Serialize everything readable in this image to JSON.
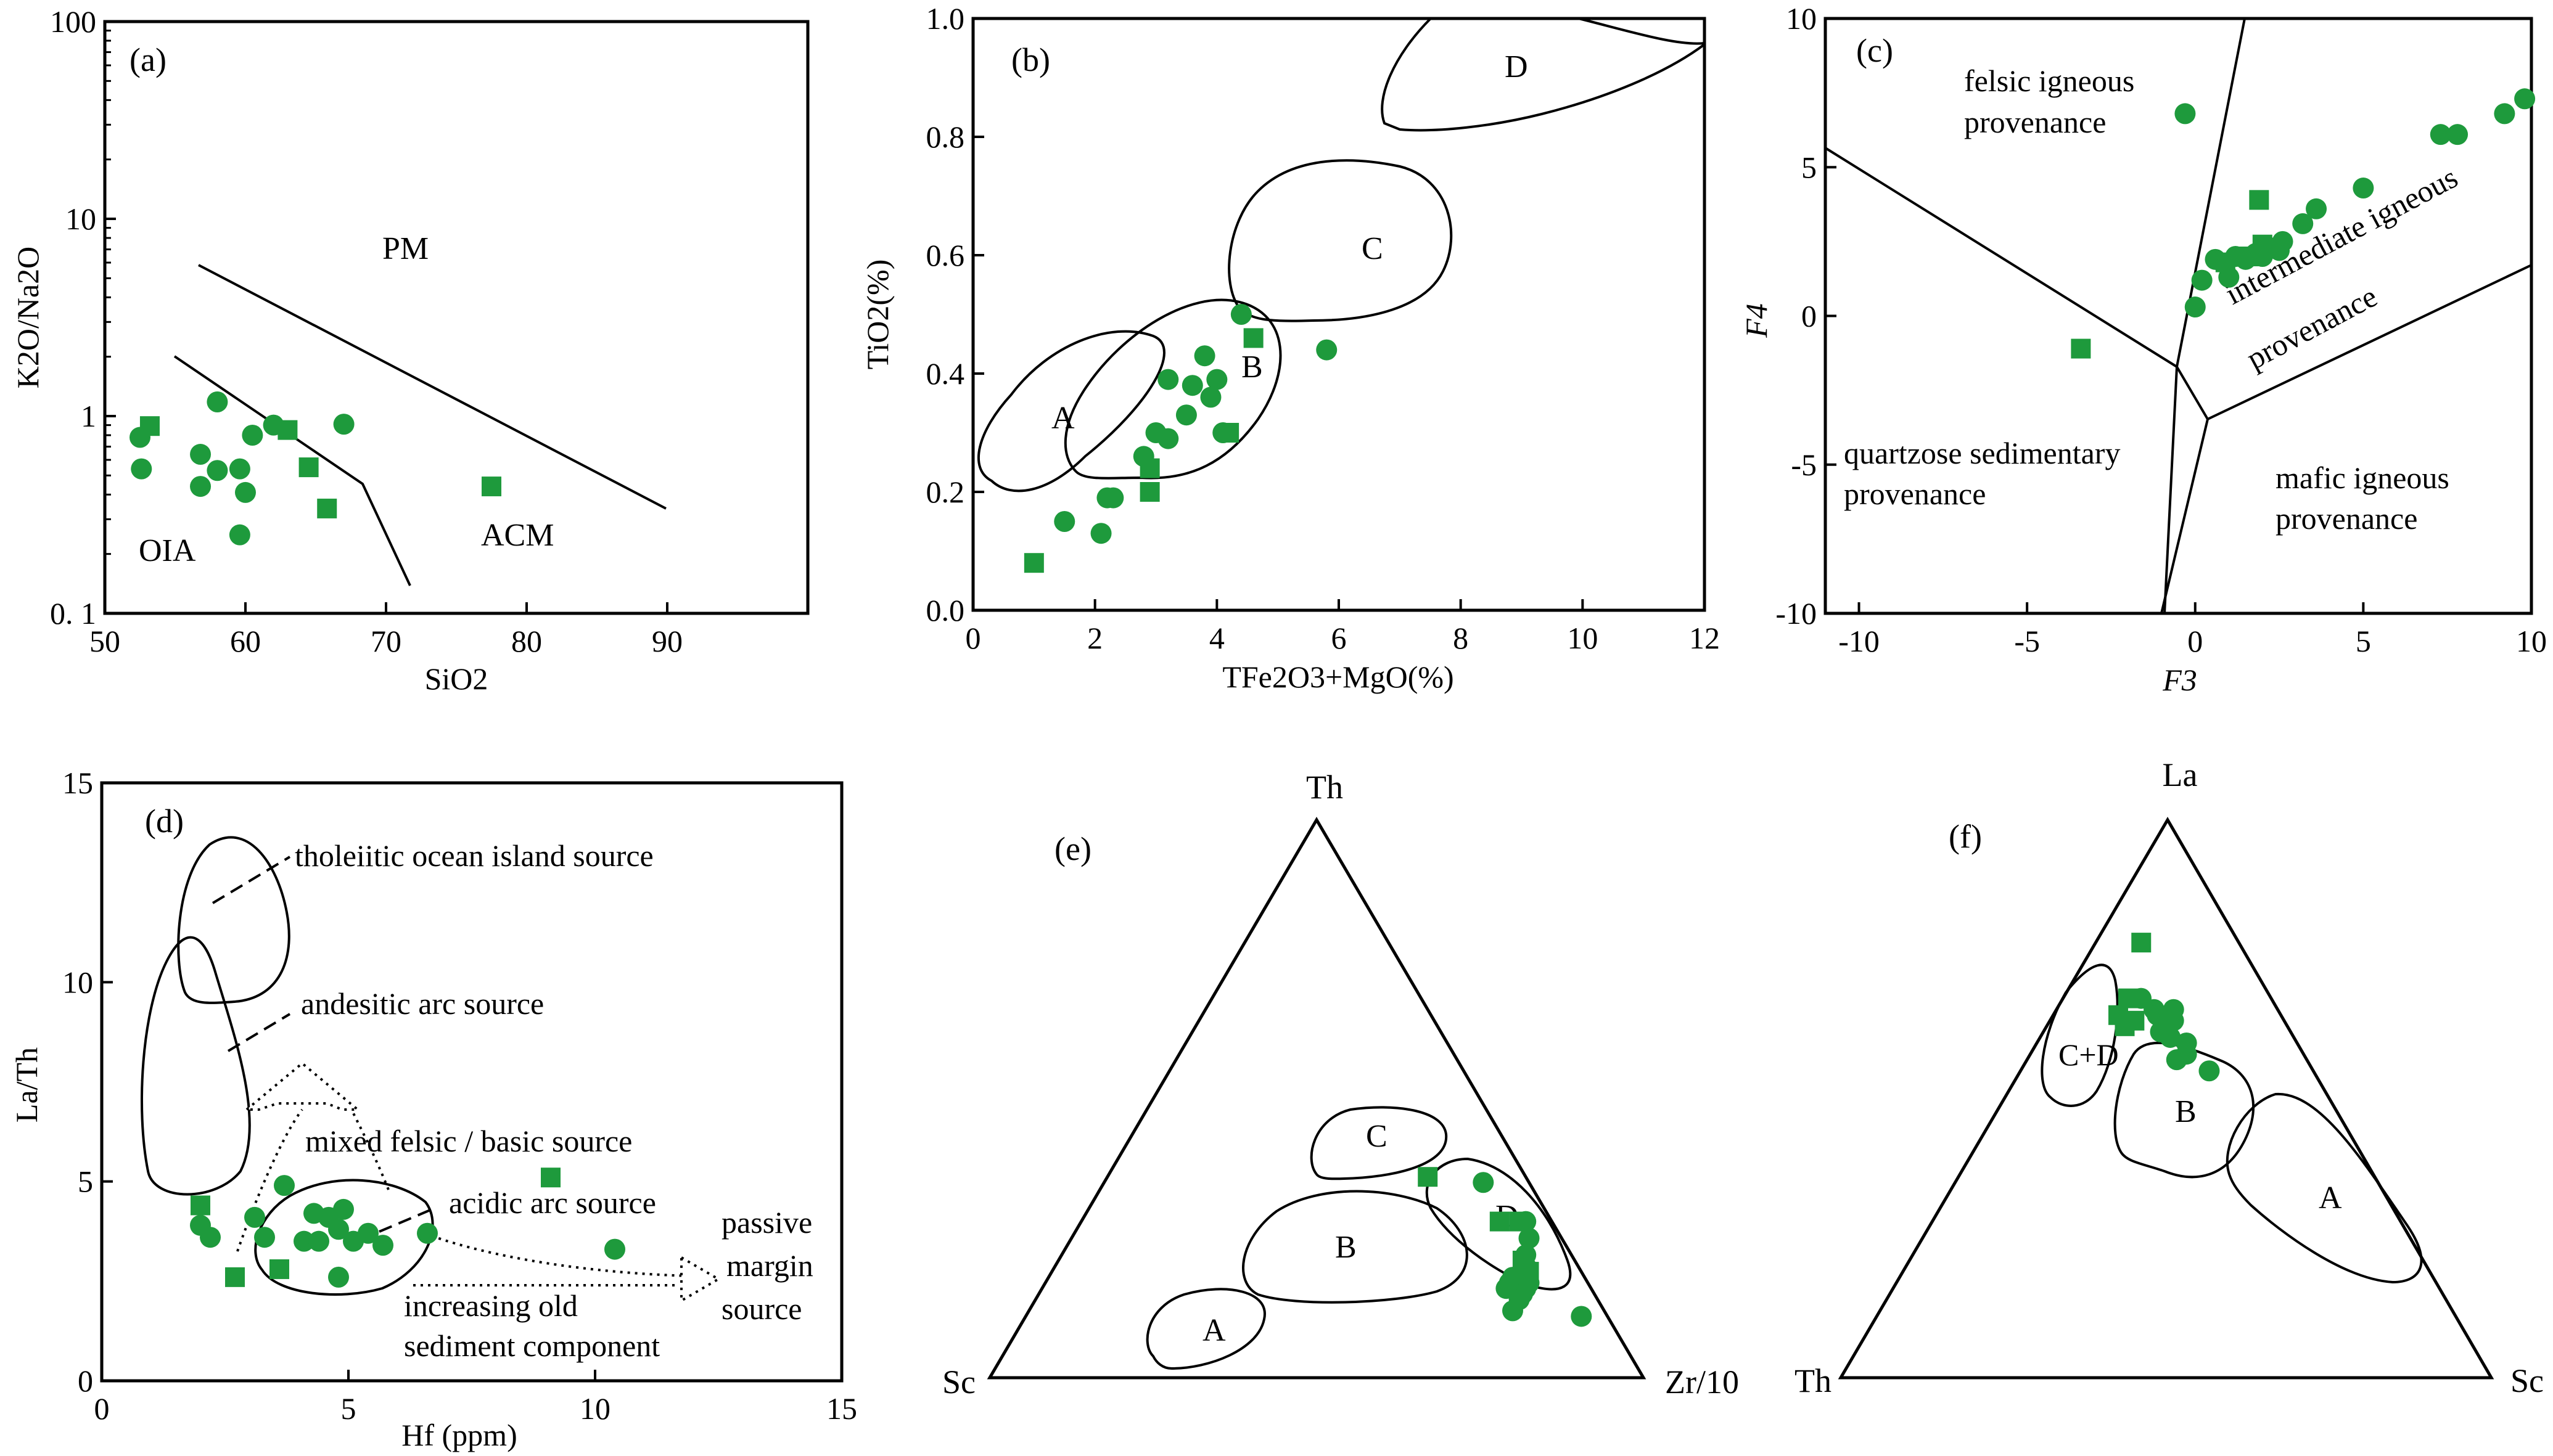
{
  "colors": {
    "marker": "#1e9a3c",
    "line": "#000000"
  },
  "chart_data": [
    {
      "id": "a",
      "type": "scatter",
      "panel_label": "(a)",
      "xlabel": "SiO2",
      "ylabel": "K2O/Na2O",
      "xlim": [
        50,
        100
      ],
      "ylim": [
        0.1,
        100
      ],
      "yscale": "log",
      "xticks": [
        "50",
        "60",
        "70",
        "80",
        "90"
      ],
      "yticks": [
        "0. 1",
        "1",
        "10",
        "100"
      ],
      "fields": [
        "PM",
        "ACM",
        "OIA"
      ],
      "series": [
        {
          "name": "circles",
          "marker": "circle",
          "points": [
            [
              52.5,
              0.78
            ],
            [
              52.6,
              0.54
            ],
            [
              56.8,
              0.64
            ],
            [
              56.8,
              0.44
            ],
            [
              58,
              1.18
            ],
            [
              58,
              0.53
            ],
            [
              59.6,
              0.54
            ],
            [
              59.6,
              0.25
            ],
            [
              60,
              0.41
            ],
            [
              60.5,
              0.8
            ],
            [
              62,
              0.9
            ],
            [
              67,
              0.91
            ]
          ]
        },
        {
          "name": "squares",
          "marker": "square",
          "points": [
            [
              53.2,
              0.89
            ],
            [
              63,
              0.85
            ],
            [
              64.5,
              0.55
            ],
            [
              65.8,
              0.34
            ],
            [
              77.5,
              0.44
            ]
          ]
        }
      ]
    },
    {
      "id": "b",
      "type": "scatter",
      "panel_label": "(b)",
      "xlabel": "TFe2O3+MgO(%)",
      "ylabel": "TiO2(%)",
      "xlim": [
        0,
        12
      ],
      "ylim": [
        0,
        1.0
      ],
      "xticks": [
        "0",
        "2",
        "4",
        "6",
        "8",
        "10",
        "12"
      ],
      "yticks": [
        "0.0",
        "0.2",
        "0.4",
        "0.6",
        "0.8",
        "1.0"
      ],
      "fields": [
        "A",
        "B",
        "C",
        "D"
      ],
      "series": [
        {
          "name": "circles",
          "marker": "circle",
          "points": [
            [
              1.5,
              0.15
            ],
            [
              2.1,
              0.13
            ],
            [
              2.2,
              0.19
            ],
            [
              2.3,
              0.19
            ],
            [
              2.8,
              0.26
            ],
            [
              3.0,
              0.3
            ],
            [
              3.2,
              0.29
            ],
            [
              3.2,
              0.39
            ],
            [
              3.5,
              0.33
            ],
            [
              3.6,
              0.38
            ],
            [
              3.8,
              0.43
            ],
            [
              3.9,
              0.36
            ],
            [
              4.0,
              0.39
            ],
            [
              4.1,
              0.3
            ],
            [
              4.4,
              0.5
            ],
            [
              5.8,
              0.44
            ]
          ]
        },
        {
          "name": "squares",
          "marker": "square",
          "points": [
            [
              1.0,
              0.08
            ],
            [
              2.9,
              0.2
            ],
            [
              2.9,
              0.24
            ],
            [
              4.2,
              0.3
            ],
            [
              4.6,
              0.46
            ]
          ]
        }
      ]
    },
    {
      "id": "c",
      "type": "scatter",
      "panel_label": "(c)",
      "xlabel": "F3",
      "ylabel": "F4",
      "xlim": [
        -11,
        10
      ],
      "ylim": [
        -10,
        10
      ],
      "xticks": [
        "-10",
        "-5",
        "0",
        "5",
        "10"
      ],
      "yticks": [
        "-10",
        "-5",
        "0",
        "5",
        "10"
      ],
      "fields": [
        "felsic igneous",
        "provenance",
        "intermediate igneous",
        "provenance",
        "quartzose sedimentary",
        "provenance",
        "mafic igneous",
        "provenance"
      ],
      "series": [
        {
          "name": "circles",
          "marker": "circle",
          "points": [
            [
              -0.3,
              6.8
            ],
            [
              0,
              0.3
            ],
            [
              0.2,
              1.2
            ],
            [
              0.6,
              1.9
            ],
            [
              1.0,
              1.3
            ],
            [
              1.2,
              2.0
            ],
            [
              1.5,
              1.9
            ],
            [
              1.8,
              2.1
            ],
            [
              2.0,
              2.0
            ],
            [
              2.2,
              2.3
            ],
            [
              2.5,
              2.2
            ],
            [
              2.6,
              2.5
            ],
            [
              3.2,
              3.1
            ],
            [
              3.6,
              3.6
            ],
            [
              5.0,
              4.3
            ],
            [
              7.3,
              6.1
            ],
            [
              7.8,
              6.1
            ],
            [
              9.2,
              6.8
            ],
            [
              9.8,
              7.3
            ]
          ]
        },
        {
          "name": "squares",
          "marker": "square",
          "points": [
            [
              -3.4,
              -1.1
            ],
            [
              0.9,
              1.8
            ],
            [
              1.6,
              2.0
            ],
            [
              1.9,
              3.9
            ],
            [
              2.0,
              2.4
            ]
          ]
        }
      ]
    },
    {
      "id": "d",
      "type": "scatter",
      "panel_label": "(d)",
      "xlabel": "Hf (ppm)",
      "ylabel": "La/Th",
      "xlim": [
        0,
        15
      ],
      "ylim": [
        0,
        15
      ],
      "xticks": [
        "0",
        "5",
        "10",
        "15"
      ],
      "yticks": [
        "0",
        "5",
        "10",
        "15"
      ],
      "annotations": [
        "tholeiitic ocean island source",
        "andesitic arc source",
        "mixed felsic / basic source",
        "acidic arc source",
        "passive",
        "margin",
        "source",
        "increasing old",
        "sediment component"
      ],
      "series": [
        {
          "name": "circles",
          "marker": "circle",
          "points": [
            [
              2.0,
              3.9
            ],
            [
              2.2,
              3.6
            ],
            [
              3.1,
              4.1
            ],
            [
              3.3,
              3.6
            ],
            [
              3.7,
              4.9
            ],
            [
              4.1,
              3.5
            ],
            [
              4.3,
              4.2
            ],
            [
              4.4,
              3.5
            ],
            [
              4.6,
              4.1
            ],
            [
              4.8,
              3.8
            ],
            [
              4.8,
              2.6
            ],
            [
              4.9,
              4.3
            ],
            [
              5.1,
              3.5
            ],
            [
              5.4,
              3.7
            ],
            [
              5.7,
              3.4
            ],
            [
              6.6,
              3.7
            ],
            [
              10.4,
              3.3
            ]
          ]
        },
        {
          "name": "squares",
          "marker": "square",
          "points": [
            [
              2.0,
              4.4
            ],
            [
              2.7,
              2.6
            ],
            [
              3.6,
              2.8
            ],
            [
              9.1,
              5.1
            ]
          ]
        }
      ]
    },
    {
      "id": "e",
      "type": "ternary",
      "panel_label": "(e)",
      "vertices": {
        "top": "Th",
        "left": "Sc",
        "right": "Zr/10"
      },
      "fields": [
        "A",
        "B",
        "C",
        "D"
      ],
      "series": [
        {
          "name": "circles",
          "marker": "circle",
          "points": [
            [
              0.35,
              0.07,
              0.58
            ],
            [
              0.28,
              0.04,
              0.68
            ],
            [
              0.25,
              0.05,
              0.7
            ],
            [
              0.22,
              0.07,
              0.71
            ],
            [
              0.2,
              0.08,
              0.72
            ],
            [
              0.19,
              0.09,
              0.72
            ],
            [
              0.18,
              0.1,
              0.72
            ],
            [
              0.18,
              0.11,
              0.71
            ],
            [
              0.17,
              0.12,
              0.71
            ],
            [
              0.17,
              0.09,
              0.74
            ],
            [
              0.16,
              0.1,
              0.74
            ],
            [
              0.15,
              0.11,
              0.74
            ],
            [
              0.16,
              0.13,
              0.71
            ],
            [
              0.12,
              0.14,
              0.74
            ],
            [
              0.14,
              0.12,
              0.74
            ],
            [
              0.11,
              0.04,
              0.85
            ]
          ]
        },
        {
          "name": "squares",
          "marker": "square",
          "points": [
            [
              0.36,
              0.15,
              0.49
            ],
            [
              0.28,
              0.08,
              0.64
            ],
            [
              0.28,
              0.05,
              0.67
            ],
            [
              0.21,
              0.08,
              0.71
            ],
            [
              0.19,
              0.08,
              0.73
            ]
          ]
        }
      ]
    },
    {
      "id": "f",
      "type": "ternary",
      "panel_label": "(f)",
      "vertices": {
        "top": "La",
        "left": "Th",
        "right": "Sc"
      },
      "fields": [
        "C+D",
        "B",
        "A"
      ],
      "series": [
        {
          "name": "circles",
          "marker": "circle",
          "points": [
            [
              0.68,
              0.2,
              0.12
            ],
            [
              0.66,
              0.19,
              0.15
            ],
            [
              0.66,
              0.16,
              0.18
            ],
            [
              0.65,
              0.19,
              0.16
            ],
            [
              0.64,
              0.17,
              0.19
            ],
            [
              0.63,
              0.19,
              0.18
            ],
            [
              0.62,
              0.2,
              0.18
            ],
            [
              0.61,
              0.19,
              0.2
            ],
            [
              0.6,
              0.17,
              0.23
            ],
            [
              0.58,
              0.18,
              0.24
            ],
            [
              0.57,
              0.2,
              0.23
            ],
            [
              0.55,
              0.16,
              0.29
            ]
          ]
        },
        {
          "name": "squares",
          "marker": "square",
          "points": [
            [
              0.78,
              0.15,
              0.07
            ],
            [
              0.68,
              0.22,
              0.1
            ],
            [
              0.65,
              0.25,
              0.1
            ],
            [
              0.63,
              0.25,
              0.12
            ],
            [
              0.64,
              0.23,
              0.13
            ]
          ]
        }
      ]
    }
  ]
}
